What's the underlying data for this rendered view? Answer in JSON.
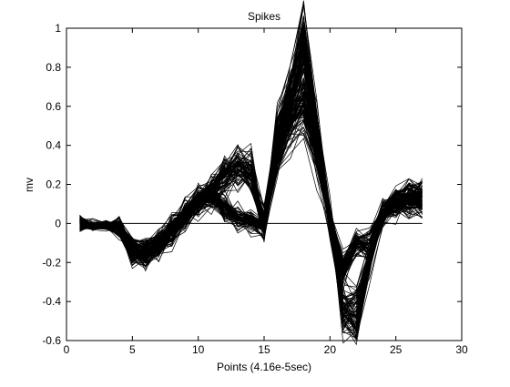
{
  "chart_data": {
    "type": "line",
    "title": "Spikes",
    "xlabel": "Points (4.16e-5sec)",
    "ylabel": "mv",
    "xlim": [
      0,
      30
    ],
    "ylim": [
      -0.6,
      1.0
    ],
    "xticks": [
      0,
      5,
      10,
      15,
      20,
      25,
      30
    ],
    "xtick_labels": [
      "0",
      "5",
      "10",
      "15",
      "20",
      "25",
      "30"
    ],
    "yticks": [
      -0.6,
      -0.4,
      -0.2,
      0,
      0.2,
      0.4,
      0.6,
      0.8,
      1.0
    ],
    "ytick_labels": [
      "-0.6",
      "-0.4",
      "-0.2",
      "0",
      "0.2",
      "0.4",
      "0.6",
      "0.8",
      "1"
    ],
    "grid": false,
    "legend": "none",
    "line_color": "#000000",
    "x": [
      1,
      2,
      3,
      4,
      5,
      6,
      7,
      8,
      9,
      10,
      11,
      12,
      13,
      14,
      15,
      16,
      17,
      18,
      19,
      20,
      21,
      22,
      23,
      24,
      25,
      26,
      27
    ],
    "reference_line": {
      "x": [
        1,
        2,
        3,
        4,
        5,
        6,
        7,
        8,
        9,
        10,
        11,
        12,
        13,
        14,
        15,
        16,
        17,
        18,
        19,
        20,
        21,
        22,
        23,
        24,
        25,
        26,
        27
      ],
      "values": [
        0,
        0,
        0,
        0,
        0,
        0,
        0,
        0,
        0,
        0,
        0,
        0,
        0,
        0,
        0,
        0,
        0,
        0,
        0,
        0,
        0,
        0,
        0,
        0,
        0,
        0,
        0
      ]
    },
    "clusters": [
      {
        "count": 80,
        "values": [
          0.0,
          -0.01,
          -0.01,
          -0.02,
          -0.14,
          -0.15,
          -0.11,
          -0.04,
          0.04,
          0.1,
          0.16,
          0.24,
          0.29,
          0.26,
          0.0,
          0.45,
          0.62,
          0.88,
          0.43,
          0.02,
          -0.44,
          -0.47,
          -0.18,
          0.04,
          0.1,
          0.13,
          0.14
        ],
        "spread": [
          0.01,
          0.01,
          0.01,
          0.02,
          0.03,
          0.03,
          0.03,
          0.03,
          0.03,
          0.03,
          0.04,
          0.04,
          0.05,
          0.04,
          0.04,
          0.05,
          0.06,
          0.06,
          0.05,
          0.04,
          0.05,
          0.05,
          0.04,
          0.03,
          0.03,
          0.04,
          0.04
        ]
      },
      {
        "count": 70,
        "values": [
          0.0,
          -0.01,
          -0.01,
          -0.02,
          -0.13,
          -0.14,
          -0.1,
          -0.02,
          0.05,
          0.12,
          0.15,
          0.08,
          0.03,
          0.01,
          -0.02,
          0.35,
          0.52,
          0.6,
          0.38,
          0.03,
          -0.24,
          -0.09,
          -0.11,
          0.06,
          0.1,
          0.11,
          0.12
        ],
        "spread": [
          0.01,
          0.01,
          0.01,
          0.02,
          0.03,
          0.03,
          0.03,
          0.03,
          0.03,
          0.03,
          0.03,
          0.03,
          0.03,
          0.03,
          0.03,
          0.04,
          0.05,
          0.04,
          0.04,
          0.03,
          0.03,
          0.03,
          0.04,
          0.03,
          0.03,
          0.04,
          0.04
        ]
      }
    ]
  }
}
